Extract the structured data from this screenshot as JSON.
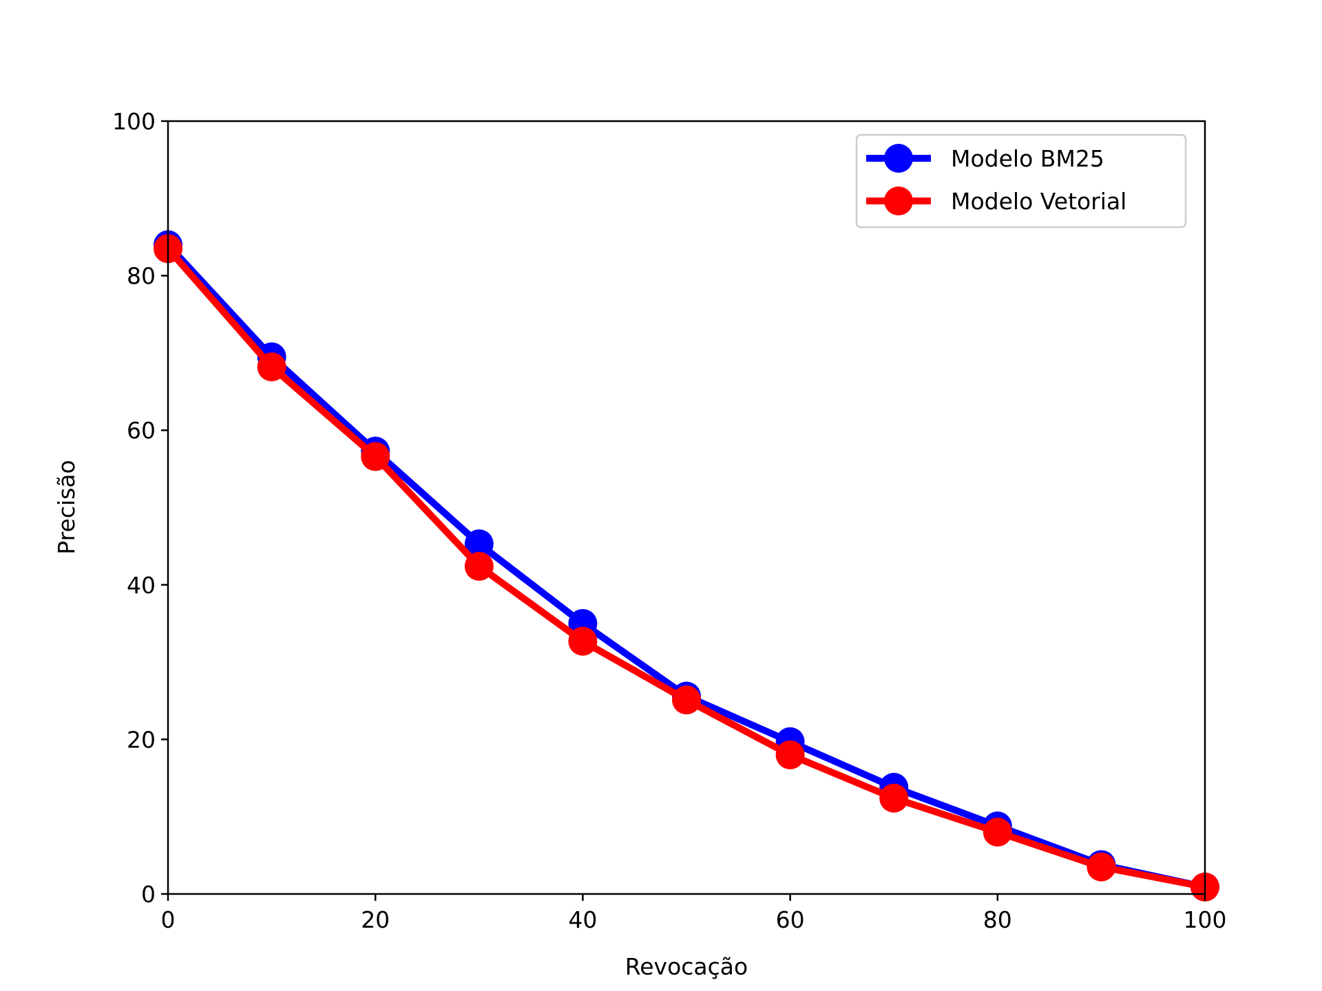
{
  "chart_data": {
    "type": "line",
    "title": "",
    "xlabel": "Revocação",
    "ylabel": "Precisão",
    "xlim": [
      0,
      100
    ],
    "ylim": [
      0,
      100
    ],
    "xticks": [
      "0",
      "20",
      "40",
      "60",
      "80",
      "100"
    ],
    "yticks": [
      "0",
      "20",
      "40",
      "60",
      "80",
      "100"
    ],
    "grid": false,
    "legend_position": "top-right",
    "x": [
      0,
      10,
      20,
      30,
      40,
      50,
      60,
      70,
      80,
      90,
      100
    ],
    "series": [
      {
        "name": "Modelo BM25",
        "color": "#0000ff",
        "marker": "circle",
        "values": [
          84.0,
          69.5,
          57.3,
          45.3,
          35.0,
          25.6,
          19.7,
          13.8,
          8.8,
          3.8,
          0.9
        ]
      },
      {
        "name": "Modelo Vetorial",
        "color": "#ff0000",
        "marker": "circle",
        "values": [
          83.5,
          68.2,
          56.6,
          42.4,
          32.7,
          25.1,
          18.0,
          12.4,
          8.0,
          3.5,
          0.9
        ]
      }
    ]
  }
}
